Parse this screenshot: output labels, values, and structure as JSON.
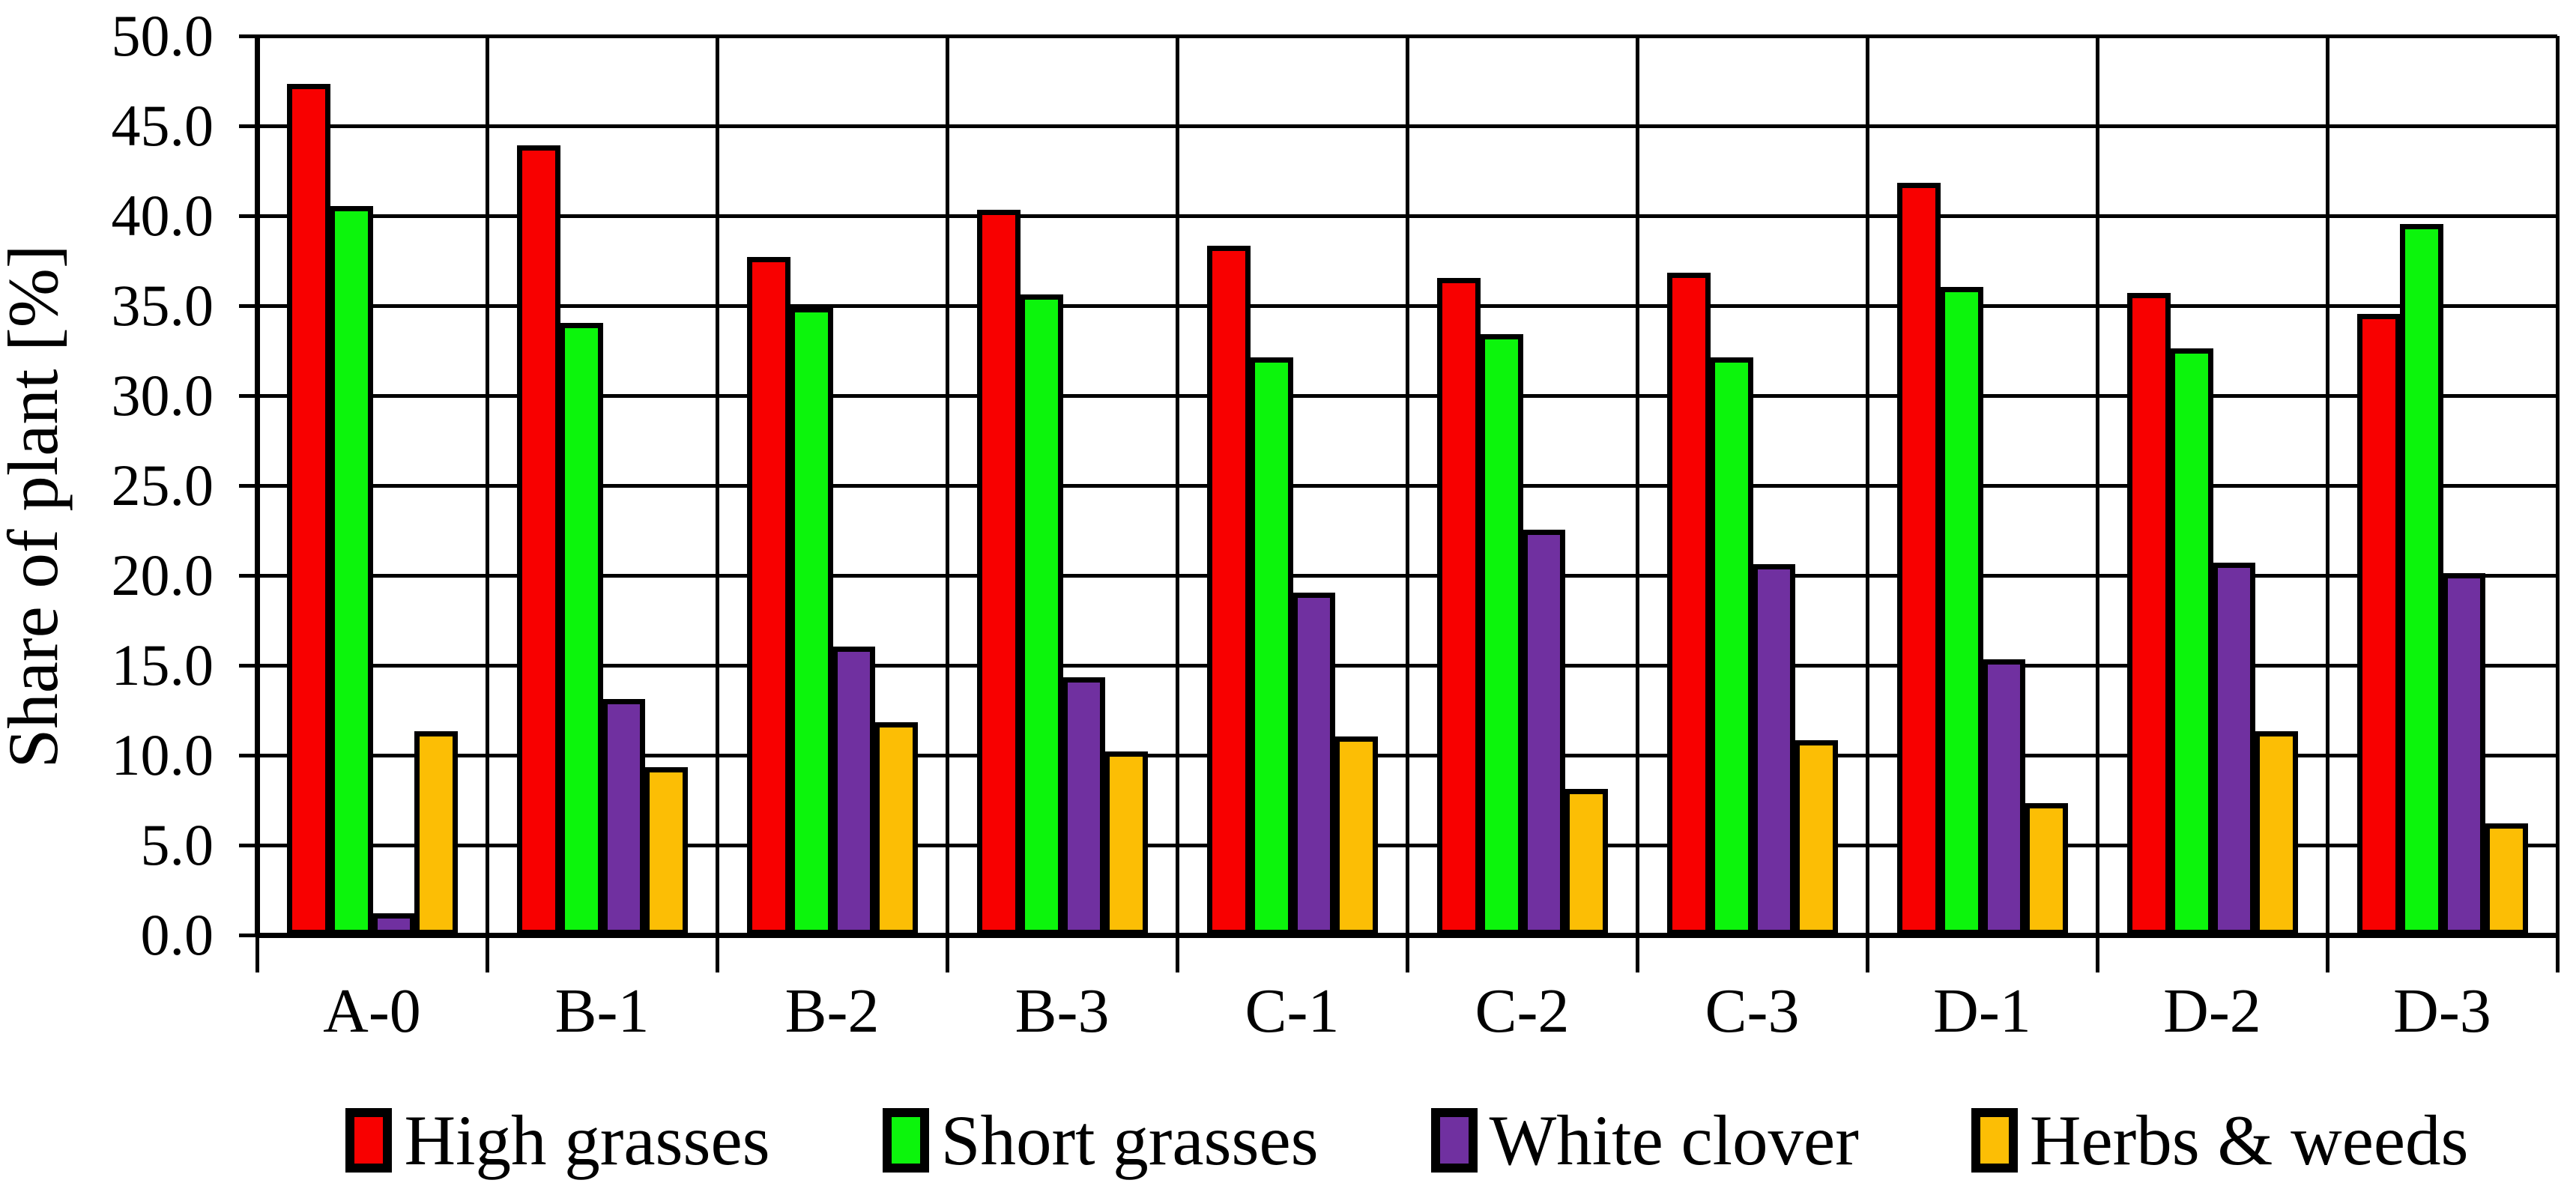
{
  "chart_data": {
    "type": "bar",
    "title": "",
    "xlabel": "",
    "ylabel": "Share of plant [%]",
    "ylim": [
      0,
      50
    ],
    "ytick_step": 5,
    "ytick_labels": [
      "0.0",
      "5.0",
      "10.0",
      "15.0",
      "20.0",
      "25.0",
      "30.0",
      "35.0",
      "40.0",
      "45.0",
      "50.0"
    ],
    "grid": {
      "horizontal": true,
      "vertical": true
    },
    "legend_position": "bottom",
    "categories": [
      "A-0",
      "B-1",
      "B-2",
      "B-3",
      "C-1",
      "C-2",
      "C-3",
      "D-1",
      "D-2",
      "D-3"
    ],
    "series": [
      {
        "name": "High grasses",
        "color": "#f80000",
        "values": [
          47.2,
          43.8,
          37.6,
          40.2,
          38.2,
          36.4,
          36.7,
          41.7,
          35.6,
          34.4
        ]
      },
      {
        "name": "Short grasses",
        "color": "#0cf50c",
        "values": [
          40.4,
          33.9,
          34.8,
          35.5,
          32.0,
          33.3,
          32.0,
          35.9,
          32.5,
          39.4
        ]
      },
      {
        "name": "White clover",
        "color": "#7030a0",
        "values": [
          1.1,
          13.0,
          15.9,
          14.2,
          18.9,
          22.4,
          20.5,
          15.2,
          20.6,
          20.0
        ]
      },
      {
        "name": "Herbs & weeds",
        "color": "#fcbe05",
        "values": [
          11.2,
          9.2,
          11.7,
          10.1,
          10.9,
          8.0,
          10.7,
          7.2,
          11.2,
          6.1
        ]
      }
    ]
  }
}
